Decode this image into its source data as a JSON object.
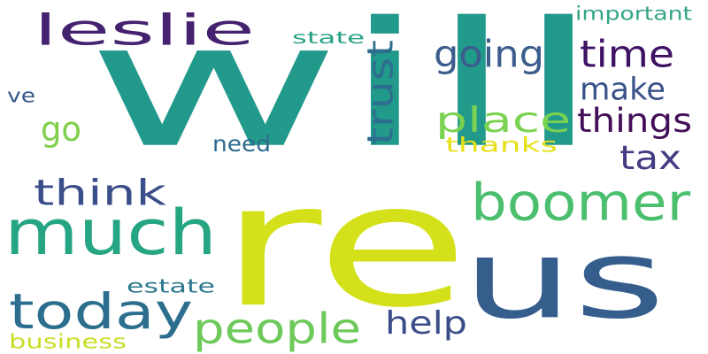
{
  "words": [
    {
      "key": "will",
      "text": "will",
      "color": "#21998b",
      "vertical": false
    },
    {
      "key": "re",
      "text": "re",
      "color": "#d4e11a",
      "vertical": false
    },
    {
      "key": "us",
      "text": "us",
      "color": "#355e8d",
      "vertical": false
    },
    {
      "key": "much",
      "text": "much",
      "color": "#26a583",
      "vertical": false
    },
    {
      "key": "boomer",
      "text": "boomer",
      "color": "#4bbf6e",
      "vertical": false
    },
    {
      "key": "leslie",
      "text": "leslie",
      "color": "#45226f",
      "vertical": false
    },
    {
      "key": "today",
      "text": "today",
      "color": "#2c6e8e",
      "vertical": false
    },
    {
      "key": "people",
      "text": "people",
      "color": "#6dca5a",
      "vertical": false
    },
    {
      "key": "think",
      "text": "think",
      "color": "#3c4e8a",
      "vertical": false
    },
    {
      "key": "things",
      "text": "things",
      "color": "#440f59",
      "vertical": false
    },
    {
      "key": "place",
      "text": "place",
      "color": "#7ad251",
      "vertical": false
    },
    {
      "key": "time",
      "text": "time",
      "color": "#3f1163",
      "vertical": false
    },
    {
      "key": "going",
      "text": "going",
      "color": "#3b5d8c",
      "vertical": false
    },
    {
      "key": "make",
      "text": "make",
      "color": "#3a5289",
      "vertical": false
    },
    {
      "key": "help",
      "text": "help",
      "color": "#3b4d89",
      "vertical": false
    },
    {
      "key": "tax",
      "text": "tax",
      "color": "#433c84",
      "vertical": false
    },
    {
      "key": "trust",
      "text": "trust",
      "color": "#2d6e8e",
      "vertical": true
    },
    {
      "key": "go",
      "text": "go",
      "color": "#80d04c",
      "vertical": false
    },
    {
      "key": "important",
      "text": "important",
      "color": "#33a587",
      "vertical": false
    },
    {
      "key": "estate",
      "text": "estate",
      "color": "#2d788e",
      "vertical": false
    },
    {
      "key": "state",
      "text": "state",
      "color": "#29a186",
      "vertical": false
    },
    {
      "key": "need",
      "text": "need",
      "color": "#2d6b8e",
      "vertical": false
    },
    {
      "key": "thanks",
      "text": "thanks",
      "color": "#e6e019",
      "vertical": false
    },
    {
      "key": "business",
      "text": "business",
      "color": "#c9dd26",
      "vertical": false
    },
    {
      "key": "ve",
      "text": "ve",
      "color": "#38598c",
      "vertical": false
    }
  ]
}
